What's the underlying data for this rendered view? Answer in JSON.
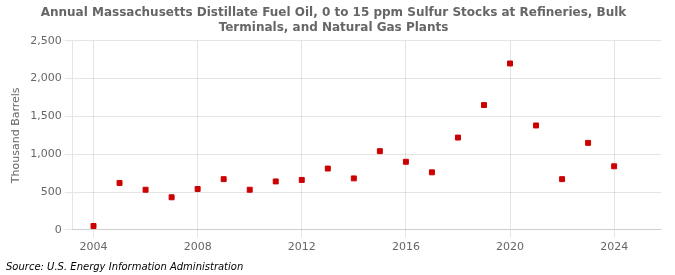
{
  "chart_data": {
    "type": "scatter",
    "title": "Annual Massachusetts Distillate Fuel Oil, 0 to 15 ppm Sulfur Stocks at Refineries, Bulk\nTerminals, and Natural Gas Plants",
    "y_label": "Thousand Barrels",
    "annotations": [
      "Source: U.S. Energy Information Administration"
    ],
    "x": [
      2004,
      2005,
      2006,
      2007,
      2008,
      2009,
      2010,
      2011,
      2012,
      2013,
      2014,
      2015,
      2016,
      2017,
      2018,
      2019,
      2020,
      2021,
      2022,
      2023,
      2024
    ],
    "values": [
      50,
      620,
      530,
      430,
      540,
      670,
      530,
      640,
      660,
      810,
      680,
      1040,
      900,
      760,
      1220,
      1650,
      2200,
      1380,
      670,
      1150,
      840
    ],
    "color": "#cc0000",
    "marker": "square",
    "xlim": [
      2003.2,
      2025.8
    ],
    "xticks": [
      2004,
      2008,
      2012,
      2016,
      2020,
      2024
    ],
    "ylim": [
      0,
      2500
    ],
    "yticks": [
      0,
      500,
      {
        "value": 1000,
        "label": "1,000"
      },
      {
        "value": 1500,
        "label": "1,500"
      },
      {
        "value": 2000,
        "label": "2,000"
      },
      {
        "value": 2500,
        "label": "2,500"
      }
    ],
    "grid": true
  }
}
